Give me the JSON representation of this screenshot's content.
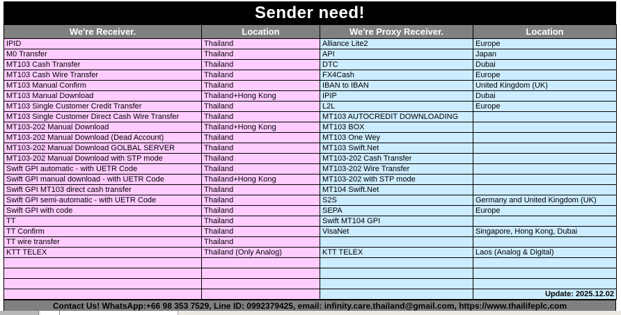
{
  "title": "Sender need!",
  "table": {
    "columns": [
      "We're Receiver.",
      "Location",
      "We're Proxy Receiver.",
      "Location"
    ],
    "rows": [
      [
        "IPID",
        "Thailand",
        "Alliance Lite2",
        "Europe"
      ],
      [
        "M0 Transfer",
        "Thailand",
        "API",
        "Japan"
      ],
      [
        "MT103 Cash Transfer",
        "Thailand",
        "DTC",
        "Dubai"
      ],
      [
        "MT103 Cash Wire Transfer",
        "Thailand",
        "FX4Cash",
        "Europe"
      ],
      [
        "MT103 Manual Confirm",
        "Thailand",
        "IBAN to IBAN",
        "United Kingdom (UK)"
      ],
      [
        "MT103 Manual Download",
        "Thailand+Hong Kong",
        "IPIP",
        "Dubai"
      ],
      [
        "MT103 Single Customer Credit Transfer",
        "Thailand",
        "L2L",
        "Europe"
      ],
      [
        "MT103 Single Customer Direct Cash Wire Transfer",
        "Thailand",
        "MT103 AUTOCREDIT DOWNLOADING",
        ""
      ],
      [
        "MT103-202 Manual Download",
        "Thailand+Hong Kong",
        "MT103 BOX",
        ""
      ],
      [
        "MT103-202 Manual Download (Dead Account)",
        "Thailand",
        "MT103 One Wey",
        ""
      ],
      [
        "MT103-202 Manual Download GOLBAL SERVER",
        "Thailand",
        "MT103 Swift.Net",
        ""
      ],
      [
        "MT103-202 Manual Download with STP mode",
        "Thailand",
        "MT103-202 Cash Transfer",
        ""
      ],
      [
        "Swift GPI automatic - with UETR Code",
        "Thailand",
        "MT103-202 Wire Transfer",
        ""
      ],
      [
        "Swift GPI manual download - with UETR Code",
        "Thailand+Hong Kong",
        "MT103-202 with STP mode",
        ""
      ],
      [
        "Swift GPI MT103 direct cash transfer",
        "Thailand",
        "MT104 Swift.Net",
        ""
      ],
      [
        "Swift GPI semi-automatic - with UETR Code",
        "Thailand",
        "S2S",
        "Germany and United Kingdom (UK)"
      ],
      [
        "Swift GPI with code",
        "Thailand",
        "SEPA",
        "Europe"
      ],
      [
        "TT",
        "Thailand",
        "Swift MT104 GPI",
        ""
      ],
      [
        "TT Confirm",
        "Thailand",
        "VisaNet",
        "Singapore, Hong Kong, Dubai"
      ],
      [
        "TT wire transfer",
        "Thailand",
        "",
        ""
      ],
      [
        "KTT TELEX",
        "Thailand (Only Analog)",
        "KTT TELEX",
        "Laos (Analog & Digital)"
      ]
    ],
    "empty_row_count": 4,
    "update_note": "Update: 2025.12.02"
  },
  "footer": {
    "contact": "Contact Us! WhatsApp:+66 98 353 7529, Line ID: 0992379425, email: infinity.care.thailand@gmail.com,  https://www.thailifeplc.com"
  },
  "colors": {
    "receiver_fill": "#FFCCFF",
    "proxy_fill": "#CCECFF",
    "header_fill": "#808080",
    "title_fill": "#000000",
    "grid_line": "#000000"
  }
}
